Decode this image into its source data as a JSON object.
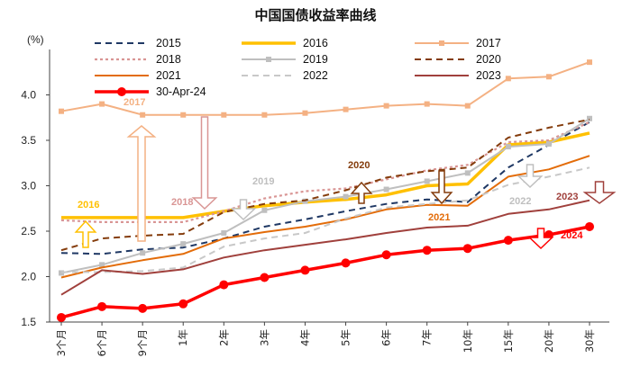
{
  "chart_data": {
    "type": "line",
    "title": "中国国债收益率曲线",
    "ylabel": "(%)",
    "ylim": [
      1.5,
      4.5
    ],
    "yticks": [
      "1.5",
      "2.0",
      "2.5",
      "3.0",
      "3.5",
      "4.0"
    ],
    "categories": [
      "3个月",
      "6个月",
      "9个月",
      "1年",
      "2年",
      "3年",
      "4年",
      "5年",
      "6年",
      "7年",
      "10年",
      "15年",
      "20年",
      "30年"
    ],
    "series": [
      {
        "name": "2015",
        "color": "#1f3864",
        "dash": "dashed",
        "values": [
          2.26,
          2.25,
          2.3,
          2.32,
          2.42,
          2.55,
          2.63,
          2.72,
          2.8,
          2.85,
          2.82,
          3.2,
          3.45,
          3.7
        ]
      },
      {
        "name": "2016",
        "color": "#ffc000",
        "dash": "solid-thick",
        "values": [
          2.65,
          2.65,
          2.65,
          2.65,
          2.72,
          2.78,
          2.82,
          2.85,
          2.9,
          3.0,
          3.02,
          3.45,
          3.48,
          3.58
        ]
      },
      {
        "name": "2017",
        "color": "#f4b183",
        "dash": "solid-square",
        "values": [
          3.82,
          3.9,
          3.78,
          3.78,
          3.78,
          3.78,
          3.8,
          3.84,
          3.88,
          3.9,
          3.88,
          4.18,
          4.2,
          4.36
        ]
      },
      {
        "name": "2018",
        "color": "#d99594",
        "dash": "dotted",
        "values": [
          2.62,
          2.6,
          2.6,
          2.6,
          2.72,
          2.86,
          2.94,
          2.97,
          3.07,
          3.17,
          3.23,
          3.48,
          3.5,
          3.7
        ]
      },
      {
        "name": "2019",
        "color": "#bfbfbf",
        "dash": "solid-square",
        "values": [
          2.04,
          2.13,
          2.26,
          2.36,
          2.48,
          2.73,
          2.83,
          2.88,
          2.96,
          3.05,
          3.14,
          3.43,
          3.46,
          3.74
        ]
      },
      {
        "name": "2020",
        "color": "#843c0c",
        "dash": "dashed",
        "values": [
          2.29,
          2.42,
          2.45,
          2.47,
          2.71,
          2.8,
          2.84,
          2.95,
          3.09,
          3.16,
          3.2,
          3.53,
          3.64,
          3.73
        ]
      },
      {
        "name": "2021",
        "color": "#e36c09",
        "dash": "solid",
        "values": [
          1.99,
          2.1,
          2.18,
          2.25,
          2.42,
          2.49,
          2.55,
          2.63,
          2.74,
          2.79,
          2.78,
          3.1,
          3.18,
          3.33
        ]
      },
      {
        "name": "2022",
        "color": "#c8c8c8",
        "dash": "dashed",
        "values": [
          2.05,
          2.05,
          2.06,
          2.1,
          2.33,
          2.42,
          2.48,
          2.64,
          2.76,
          2.8,
          2.84,
          3.01,
          3.1,
          3.2
        ]
      },
      {
        "name": "2023",
        "color": "#a0403c",
        "dash": "solid",
        "values": [
          1.8,
          2.07,
          2.03,
          2.08,
          2.21,
          2.29,
          2.35,
          2.41,
          2.48,
          2.54,
          2.56,
          2.69,
          2.74,
          2.84
        ]
      },
      {
        "name": "30-Apr-24",
        "color": "#ff0000",
        "dash": "solid-marker",
        "values": [
          1.55,
          1.67,
          1.65,
          1.7,
          1.91,
          1.99,
          2.07,
          2.15,
          2.24,
          2.29,
          2.31,
          2.4,
          2.46,
          2.55
        ]
      }
    ],
    "annotations": [
      {
        "text": "2017",
        "color": "#f4b183"
      },
      {
        "text": "2016",
        "color": "#ffc000"
      },
      {
        "text": "2018",
        "color": "#d99594"
      },
      {
        "text": "2019",
        "color": "#bfbfbf"
      },
      {
        "text": "2020",
        "color": "#843c0c"
      },
      {
        "text": "2021",
        "color": "#e36c09"
      },
      {
        "text": "2022",
        "color": "#bfbfbf"
      },
      {
        "text": "2023",
        "color": "#a0403c"
      },
      {
        "text": "2024",
        "color": "#ff0000"
      }
    ],
    "legend": "top"
  }
}
